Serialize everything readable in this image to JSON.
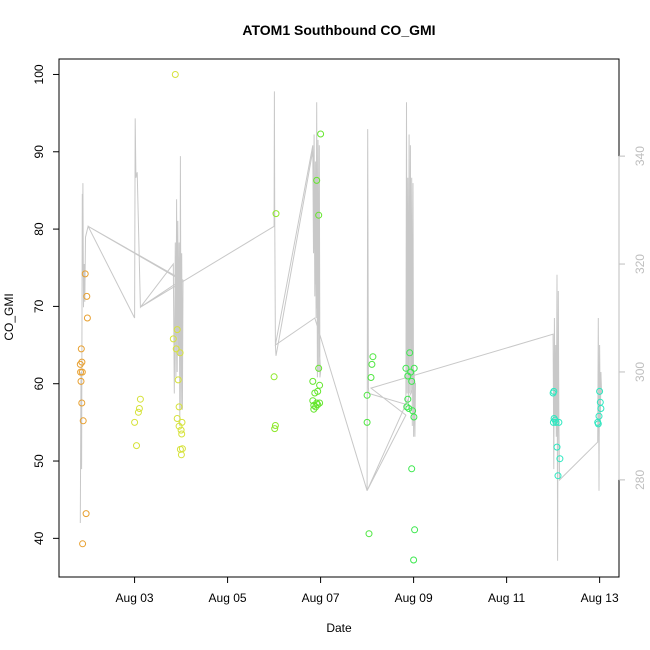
{
  "chart_data": {
    "type": "scatter",
    "title": "ATOM1 Southbound CO_GMI",
    "xlabel": "Date",
    "ylabel": "CO_GMI",
    "x_unit": "date",
    "xlim": [
      "2016-08-01T09:00",
      "2016-08-13T10:00"
    ],
    "ylim": [
      35,
      102
    ],
    "x_ticks": [
      {
        "date": "2016-08-03",
        "label": "Aug 03"
      },
      {
        "date": "2016-08-05",
        "label": "Aug 05"
      },
      {
        "date": "2016-08-07",
        "label": "Aug 07"
      },
      {
        "date": "2016-08-09",
        "label": "Aug 09"
      },
      {
        "date": "2016-08-11",
        "label": "Aug 11"
      },
      {
        "date": "2016-08-13",
        "label": "Aug 13"
      }
    ],
    "y_ticks": [
      40,
      50,
      60,
      70,
      80,
      90,
      100
    ],
    "right_axis": {
      "ylim": [
        262,
        358
      ],
      "ticks": [
        280,
        300,
        320,
        340
      ],
      "color": "#bebebe"
    },
    "grid": false,
    "legend": "none",
    "points": [
      {
        "t": "2016-08-01T20:00",
        "y": 62.5,
        "color": "#e8a030"
      },
      {
        "t": "2016-08-01T20:10",
        "y": 61.5,
        "color": "#e8a030"
      },
      {
        "t": "2016-08-01T20:20",
        "y": 60.3,
        "color": "#e8a030"
      },
      {
        "t": "2016-08-01T20:30",
        "y": 64.5,
        "color": "#e8a030"
      },
      {
        "t": "2016-08-01T20:45",
        "y": 57.5,
        "color": "#e8a030"
      },
      {
        "t": "2016-08-01T20:50",
        "y": 62.8,
        "color": "#e8a030"
      },
      {
        "t": "2016-08-01T21:00",
        "y": 61.5,
        "color": "#e8a030"
      },
      {
        "t": "2016-08-01T21:10",
        "y": 39.3,
        "color": "#e8a030"
      },
      {
        "t": "2016-08-01T21:30",
        "y": 55.2,
        "color": "#e8a030"
      },
      {
        "t": "2016-08-01T22:30",
        "y": 74.2,
        "color": "#e8a030"
      },
      {
        "t": "2016-08-01T23:00",
        "y": 43.2,
        "color": "#e8a030"
      },
      {
        "t": "2016-08-01T23:20",
        "y": 71.3,
        "color": "#e8a030"
      },
      {
        "t": "2016-08-01T23:40",
        "y": 68.5,
        "color": "#e8a030"
      },
      {
        "t": "2016-08-03T00:00",
        "y": 55.0,
        "color": "#d6e23a"
      },
      {
        "t": "2016-08-03T01:00",
        "y": 52.0,
        "color": "#d6e23a"
      },
      {
        "t": "2016-08-03T02:00",
        "y": 56.3,
        "color": "#d6e23a"
      },
      {
        "t": "2016-08-03T02:30",
        "y": 56.8,
        "color": "#d6e23a"
      },
      {
        "t": "2016-08-03T03:00",
        "y": 58.0,
        "color": "#d6e23a"
      },
      {
        "t": "2016-08-03T20:00",
        "y": 65.8,
        "color": "#d6e23a"
      },
      {
        "t": "2016-08-03T21:00",
        "y": 100.0,
        "color": "#d6e23a"
      },
      {
        "t": "2016-08-03T21:30",
        "y": 64.5,
        "color": "#d6e23a"
      },
      {
        "t": "2016-08-03T22:00",
        "y": 67.0,
        "color": "#d6e23a"
      },
      {
        "t": "2016-08-03T22:00",
        "y": 55.5,
        "color": "#d6e23a"
      },
      {
        "t": "2016-08-03T22:30",
        "y": 60.5,
        "color": "#d6e23a"
      },
      {
        "t": "2016-08-03T23:00",
        "y": 54.5,
        "color": "#d6e23a"
      },
      {
        "t": "2016-08-03T23:00",
        "y": 57.0,
        "color": "#d6e23a"
      },
      {
        "t": "2016-08-03T23:30",
        "y": 64.0,
        "color": "#d6e23a"
      },
      {
        "t": "2016-08-03T23:40",
        "y": 51.5,
        "color": "#d6e23a"
      },
      {
        "t": "2016-08-04T00:00",
        "y": 54.0,
        "color": "#d6e23a"
      },
      {
        "t": "2016-08-04T00:10",
        "y": 50.8,
        "color": "#d6e23a"
      },
      {
        "t": "2016-08-04T00:20",
        "y": 53.5,
        "color": "#d6e23a"
      },
      {
        "t": "2016-08-04T00:30",
        "y": 55.0,
        "color": "#d6e23a"
      },
      {
        "t": "2016-08-04T00:40",
        "y": 51.6,
        "color": "#d6e23a"
      },
      {
        "t": "2016-08-06T00:00",
        "y": 60.9,
        "color": "#8de828"
      },
      {
        "t": "2016-08-06T01:00",
        "y": 82.0,
        "color": "#8de828"
      },
      {
        "t": "2016-08-06T00:20",
        "y": 54.2,
        "color": "#8de828"
      },
      {
        "t": "2016-08-06T00:40",
        "y": 54.6,
        "color": "#8de828"
      },
      {
        "t": "2016-08-06T20:00",
        "y": 60.3,
        "color": "#64e62c"
      },
      {
        "t": "2016-08-06T20:00",
        "y": 57.8,
        "color": "#64e62c"
      },
      {
        "t": "2016-08-06T20:30",
        "y": 57.2,
        "color": "#64e62c"
      },
      {
        "t": "2016-08-06T20:30",
        "y": 56.7,
        "color": "#64e62c"
      },
      {
        "t": "2016-08-06T21:00",
        "y": 58.8,
        "color": "#64e62c"
      },
      {
        "t": "2016-08-06T21:30",
        "y": 57.0,
        "color": "#64e62c"
      },
      {
        "t": "2016-08-06T22:00",
        "y": 57.5,
        "color": "#64e62c"
      },
      {
        "t": "2016-08-06T22:00",
        "y": 86.3,
        "color": "#64e62c"
      },
      {
        "t": "2016-08-06T22:30",
        "y": 59.0,
        "color": "#64e62c"
      },
      {
        "t": "2016-08-06T22:30",
        "y": 57.3,
        "color": "#64e62c"
      },
      {
        "t": "2016-08-06T23:00",
        "y": 81.8,
        "color": "#64e62c"
      },
      {
        "t": "2016-08-06T23:00",
        "y": 62.0,
        "color": "#64e62c"
      },
      {
        "t": "2016-08-06T23:30",
        "y": 59.8,
        "color": "#64e62c"
      },
      {
        "t": "2016-08-06T23:30",
        "y": 57.5,
        "color": "#64e62c"
      },
      {
        "t": "2016-08-07T00:00",
        "y": 92.3,
        "color": "#64e62c"
      },
      {
        "t": "2016-08-08T00:00",
        "y": 58.5,
        "color": "#4ee640"
      },
      {
        "t": "2016-08-08T00:00",
        "y": 55.0,
        "color": "#4ee640"
      },
      {
        "t": "2016-08-08T01:00",
        "y": 40.6,
        "color": "#4ee640"
      },
      {
        "t": "2016-08-08T02:00",
        "y": 60.8,
        "color": "#4ee640"
      },
      {
        "t": "2016-08-08T02:30",
        "y": 62.5,
        "color": "#4ee640"
      },
      {
        "t": "2016-08-08T03:00",
        "y": 63.5,
        "color": "#4ee640"
      },
      {
        "t": "2016-08-08T20:00",
        "y": 62.0,
        "color": "#3ce84e"
      },
      {
        "t": "2016-08-08T20:30",
        "y": 57.0,
        "color": "#3ce84e"
      },
      {
        "t": "2016-08-08T21:00",
        "y": 58.0,
        "color": "#3ce84e"
      },
      {
        "t": "2016-08-08T21:00",
        "y": 61.0,
        "color": "#3ce84e"
      },
      {
        "t": "2016-08-08T21:30",
        "y": 56.8,
        "color": "#3ce84e"
      },
      {
        "t": "2016-08-08T22:00",
        "y": 64.0,
        "color": "#3ce84e"
      },
      {
        "t": "2016-08-08T22:30",
        "y": 61.5,
        "color": "#3ce84e"
      },
      {
        "t": "2016-08-08T23:00",
        "y": 60.3,
        "color": "#3ce84e"
      },
      {
        "t": "2016-08-08T23:00",
        "y": 49.0,
        "color": "#3ce84e"
      },
      {
        "t": "2016-08-08T23:30",
        "y": 56.5,
        "color": "#3ce84e"
      },
      {
        "t": "2016-08-09T00:00",
        "y": 37.2,
        "color": "#3ce84e"
      },
      {
        "t": "2016-08-09T00:10",
        "y": 55.7,
        "color": "#3ce84e"
      },
      {
        "t": "2016-08-09T00:20",
        "y": 62.0,
        "color": "#3ce84e"
      },
      {
        "t": "2016-08-09T00:30",
        "y": 41.1,
        "color": "#3ce84e"
      },
      {
        "t": "2016-08-12T00:00",
        "y": 58.8,
        "color": "#2ce8c0"
      },
      {
        "t": "2016-08-12T00:10",
        "y": 55.0,
        "color": "#2ce8c0"
      },
      {
        "t": "2016-08-12T00:20",
        "y": 59.0,
        "color": "#2ce8c0"
      },
      {
        "t": "2016-08-12T00:30",
        "y": 55.5,
        "color": "#2ce8c0"
      },
      {
        "t": "2016-08-12T01:00",
        "y": 55.3,
        "color": "#2ce8c0"
      },
      {
        "t": "2016-08-12T01:30",
        "y": 55.0,
        "color": "#2ce8c0"
      },
      {
        "t": "2016-08-12T02:00",
        "y": 51.8,
        "color": "#2ce8c0"
      },
      {
        "t": "2016-08-12T02:30",
        "y": 48.1,
        "color": "#2ce8c0"
      },
      {
        "t": "2016-08-12T03:00",
        "y": 55.0,
        "color": "#2ce8c0"
      },
      {
        "t": "2016-08-12T03:30",
        "y": 50.3,
        "color": "#2ce8c0"
      },
      {
        "t": "2016-08-12T23:00",
        "y": 55.0,
        "color": "#2ce8c0"
      },
      {
        "t": "2016-08-12T23:20",
        "y": 54.8,
        "color": "#2ce8c0"
      },
      {
        "t": "2016-08-12T23:40",
        "y": 55.8,
        "color": "#2ce8c0"
      },
      {
        "t": "2016-08-13T00:00",
        "y": 59.0,
        "color": "#2ce8c0"
      },
      {
        "t": "2016-08-13T00:20",
        "y": 57.6,
        "color": "#2ce8c0"
      },
      {
        "t": "2016-08-13T00:40",
        "y": 56.8,
        "color": "#2ce8c0"
      }
    ],
    "line_series": {
      "axis": "right",
      "color": "#c8c8c8",
      "points": [
        [
          "2016-08-01T20:00",
          272
        ],
        [
          "2016-08-01T20:20",
          300
        ],
        [
          "2016-08-01T20:40",
          282
        ],
        [
          "2016-08-01T21:00",
          333
        ],
        [
          "2016-08-01T21:10",
          318
        ],
        [
          "2016-08-01T21:20",
          335
        ],
        [
          "2016-08-01T21:40",
          312
        ],
        [
          "2016-08-01T22:00",
          320
        ],
        [
          "2016-08-01T22:20",
          313
        ],
        [
          "2016-08-01T22:40",
          325
        ],
        [
          "2016-08-02T00:00",
          327
        ],
        [
          "2016-08-03T00:00",
          310
        ],
        [
          "2016-08-03T00:20",
          347
        ],
        [
          "2016-08-03T00:40",
          336
        ],
        [
          "2016-08-03T01:20",
          337
        ],
        [
          "2016-08-03T03:00",
          312
        ],
        [
          "2016-08-03T20:00",
          320
        ],
        [
          "2016-08-03T20:30",
          296
        ],
        [
          "2016-08-03T21:00",
          324
        ],
        [
          "2016-08-03T21:20",
          299
        ],
        [
          "2016-08-03T21:40",
          332
        ],
        [
          "2016-08-03T22:00",
          300
        ],
        [
          "2016-08-03T22:20",
          328
        ],
        [
          "2016-08-03T22:40",
          303
        ],
        [
          "2016-08-03T23:00",
          324
        ],
        [
          "2016-08-03T23:20",
          290
        ],
        [
          "2016-08-03T23:40",
          340
        ],
        [
          "2016-08-04T00:00",
          293
        ],
        [
          "2016-08-04T00:20",
          322
        ],
        [
          "2016-08-04T00:40",
          293
        ],
        [
          "2016-08-04T01:00",
          317
        ],
        [
          "2016-08-02T00:00",
          327
        ],
        [
          "2016-08-04T00:00",
          317
        ],
        [
          "2016-08-03T03:00",
          312
        ],
        [
          "2016-08-06T00:00",
          327
        ],
        [
          "2016-08-06T00:10",
          352
        ],
        [
          "2016-08-06T00:20",
          330
        ],
        [
          "2016-08-06T00:40",
          305
        ],
        [
          "2016-08-06T01:00",
          303
        ],
        [
          "2016-08-06T20:00",
          341
        ],
        [
          "2016-08-06T20:20",
          322
        ],
        [
          "2016-08-06T20:40",
          344
        ],
        [
          "2016-08-06T21:00",
          314
        ],
        [
          "2016-08-06T21:20",
          339
        ],
        [
          "2016-08-06T21:40",
          310
        ],
        [
          "2016-08-06T22:00",
          350
        ],
        [
          "2016-08-06T22:20",
          299
        ],
        [
          "2016-08-06T22:40",
          343
        ],
        [
          "2016-08-06T23:00",
          300
        ],
        [
          "2016-08-06T23:20",
          342
        ],
        [
          "2016-08-06T23:40",
          299
        ],
        [
          "2016-08-07T00:00",
          300
        ],
        [
          "2016-08-06T21:00",
          320
        ],
        [
          "2016-08-06T20:00",
          342
        ],
        [
          "2016-08-06T00:40",
          305
        ],
        [
          "2016-08-06T21:00",
          310
        ],
        [
          "2016-08-08T00:00",
          278
        ],
        [
          "2016-08-08T00:20",
          345
        ],
        [
          "2016-08-08T00:40",
          297
        ],
        [
          "2016-08-08T01:00",
          296
        ],
        [
          "2016-08-08T20:00",
          294
        ],
        [
          "2016-08-08T20:20",
          350
        ],
        [
          "2016-08-08T20:40",
          296
        ],
        [
          "2016-08-08T21:00",
          336
        ],
        [
          "2016-08-08T21:20",
          293
        ],
        [
          "2016-08-08T21:40",
          344
        ],
        [
          "2016-08-08T22:00",
          296
        ],
        [
          "2016-08-08T22:20",
          342
        ],
        [
          "2016-08-08T22:40",
          296
        ],
        [
          "2016-08-08T23:00",
          336
        ],
        [
          "2016-08-08T23:20",
          290
        ],
        [
          "2016-08-08T23:40",
          335
        ],
        [
          "2016-08-09T00:00",
          288
        ],
        [
          "2016-08-09T00:20",
          300
        ],
        [
          "2016-08-09T00:40",
          288
        ],
        [
          "2016-08-09T01:00",
          298
        ],
        [
          "2016-08-08T00:00",
          278
        ],
        [
          "2016-08-08T20:00",
          292
        ],
        [
          "2016-08-08T02:00",
          297
        ],
        [
          "2016-08-12T00:00",
          307
        ],
        [
          "2016-08-12T00:20",
          282
        ],
        [
          "2016-08-12T00:40",
          310
        ],
        [
          "2016-08-12T01:00",
          290
        ],
        [
          "2016-08-12T01:20",
          305
        ],
        [
          "2016-08-12T01:40",
          288
        ],
        [
          "2016-08-12T02:00",
          318
        ],
        [
          "2016-08-12T02:20",
          265
        ],
        [
          "2016-08-12T02:40",
          315
        ],
        [
          "2016-08-12T03:00",
          290
        ],
        [
          "2016-08-12T03:20",
          280
        ],
        [
          "2016-08-12T23:00",
          287
        ],
        [
          "2016-08-12T23:20",
          310
        ],
        [
          "2016-08-12T23:40",
          278
        ],
        [
          "2016-08-13T00:00",
          305
        ],
        [
          "2016-08-13T00:20",
          290
        ],
        [
          "2016-08-13T00:40",
          300
        ],
        [
          "2016-08-13T01:00",
          296
        ]
      ]
    }
  }
}
